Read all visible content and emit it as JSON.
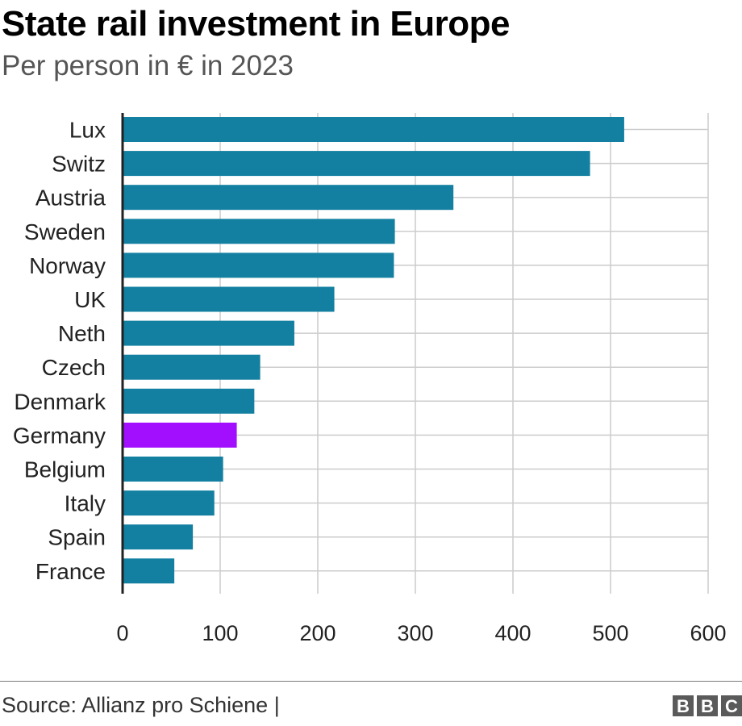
{
  "chart_data": {
    "type": "bar",
    "orientation": "horizontal",
    "title": "State rail investment in Europe",
    "subtitle": "Per person in € in 2023",
    "categories": [
      "Lux",
      "Switz",
      "Austria",
      "Sweden",
      "Norway",
      "UK",
      "Neth",
      "Czech",
      "Denmark",
      "Germany",
      "Belgium",
      "Italy",
      "Spain",
      "France"
    ],
    "values": [
      514,
      479,
      339,
      279,
      278,
      217,
      176,
      141,
      135,
      117,
      103,
      94,
      72,
      53
    ],
    "xlim": [
      0,
      600
    ],
    "xticks": [
      0,
      100,
      200,
      300,
      400,
      500,
      600
    ],
    "grid": true,
    "colors": {
      "default": "#1380a1",
      "highlight": "#a20fff",
      "highlight_category": "Germany"
    }
  },
  "footer": {
    "source": "Source: Allianz pro Schiene |",
    "logo_letters": [
      "B",
      "B",
      "C"
    ]
  }
}
